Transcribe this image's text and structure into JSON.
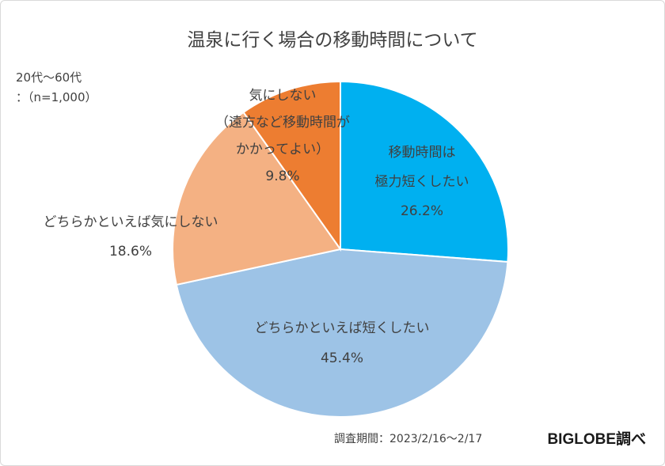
{
  "chart_data": {
    "type": "pie",
    "title": "温泉に行く場合の移動時間について",
    "subtitle_lines": [
      "20代～60代",
      "：（n=1,000）"
    ],
    "slices": [
      {
        "label_lines": [
          "移動時間は",
          "極力短くしたい"
        ],
        "value": 26.2,
        "value_label": "26.2%",
        "color": "#00b0f0"
      },
      {
        "label_lines": [
          "どちらかといえば短くしたい"
        ],
        "value": 45.4,
        "value_label": "45.4%",
        "color": "#9dc3e6"
      },
      {
        "label_lines": [
          "どちらかといえば気にしない"
        ],
        "value": 18.6,
        "value_label": "18.6%",
        "color": "#f4b183"
      },
      {
        "label_lines": [
          "気にしない",
          "（遠方など移動時間が",
          "かかってよい）"
        ],
        "value": 9.8,
        "value_label": "9.8%",
        "color": "#ed7d31"
      }
    ],
    "legend": "none"
  },
  "footer": {
    "period": "調査期間：2023/2/16～2/17",
    "source": "BIGLOBE調べ"
  }
}
